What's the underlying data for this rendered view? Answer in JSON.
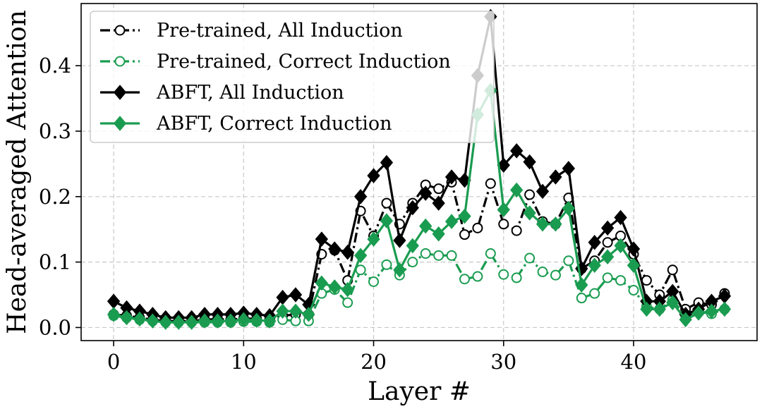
{
  "chart_data": {
    "type": "line",
    "title": "",
    "xlabel": "Layer #",
    "ylabel": "Head-averaged Attention",
    "xlim": [
      -2.5,
      49.5
    ],
    "ylim": [
      -0.02,
      0.495
    ],
    "xticks": [
      0,
      10,
      20,
      30,
      40
    ],
    "yticks": [
      0.0,
      0.1,
      0.2,
      0.3,
      0.4
    ],
    "xtick_labels": [
      "0",
      "10",
      "20",
      "30",
      "40"
    ],
    "ytick_labels": [
      "0.0",
      "0.1",
      "0.2",
      "0.3",
      "0.4"
    ],
    "grid": true,
    "legend_position": "upper-left",
    "x": [
      0,
      1,
      2,
      3,
      4,
      5,
      6,
      7,
      8,
      9,
      10,
      11,
      12,
      13,
      14,
      15,
      16,
      17,
      18,
      19,
      20,
      21,
      22,
      23,
      24,
      25,
      26,
      27,
      28,
      29,
      30,
      31,
      32,
      33,
      34,
      35,
      36,
      37,
      38,
      39,
      40,
      41,
      42,
      43,
      44,
      45,
      46,
      47
    ],
    "series": [
      {
        "name": "Pre-trained, All Induction",
        "color": "#000000",
        "linestyle": "dashdot",
        "marker": "open-circle",
        "values": [
          0.02,
          0.018,
          0.015,
          0.012,
          0.01,
          0.01,
          0.01,
          0.012,
          0.013,
          0.012,
          0.014,
          0.013,
          0.012,
          0.018,
          0.02,
          0.02,
          0.112,
          0.118,
          0.072,
          0.178,
          0.14,
          0.19,
          0.158,
          0.19,
          0.218,
          0.212,
          0.222,
          0.142,
          0.152,
          0.22,
          0.158,
          0.148,
          0.203,
          0.162,
          0.158,
          0.198,
          0.09,
          0.102,
          0.13,
          0.14,
          0.112,
          0.072,
          0.05,
          0.088,
          0.028,
          0.038,
          0.035,
          0.052
        ]
      },
      {
        "name": "Pre-trained, Correct Induction",
        "color": "#1a9c50",
        "linestyle": "dashdot",
        "marker": "open-circle",
        "values": [
          0.018,
          0.015,
          0.012,
          0.01,
          0.008,
          0.008,
          0.008,
          0.008,
          0.008,
          0.008,
          0.009,
          0.009,
          0.008,
          0.012,
          0.01,
          0.01,
          0.052,
          0.058,
          0.038,
          0.088,
          0.07,
          0.096,
          0.08,
          0.1,
          0.113,
          0.11,
          0.11,
          0.074,
          0.078,
          0.113,
          0.081,
          0.076,
          0.106,
          0.085,
          0.08,
          0.102,
          0.045,
          0.052,
          0.076,
          0.072,
          0.057,
          0.032,
          0.028,
          0.042,
          0.018,
          0.024,
          0.021,
          0.028
        ]
      },
      {
        "name": "ABFT, All Induction",
        "color": "#000000",
        "linestyle": "solid",
        "marker": "filled-diamond",
        "values": [
          0.04,
          0.03,
          0.025,
          0.02,
          0.015,
          0.015,
          0.015,
          0.02,
          0.02,
          0.02,
          0.022,
          0.02,
          0.018,
          0.046,
          0.05,
          0.035,
          0.135,
          0.12,
          0.115,
          0.2,
          0.232,
          0.252,
          0.133,
          0.183,
          0.205,
          0.19,
          0.23,
          0.225,
          0.385,
          0.475,
          0.248,
          0.27,
          0.253,
          0.208,
          0.23,
          0.243,
          0.09,
          0.13,
          0.152,
          0.168,
          0.12,
          0.04,
          0.04,
          0.055,
          0.02,
          0.028,
          0.04,
          0.048
        ]
      },
      {
        "name": "ABFT, Correct Induction",
        "color": "#1a9c50",
        "linestyle": "solid",
        "marker": "filled-diamond",
        "values": [
          0.02,
          0.015,
          0.013,
          0.01,
          0.008,
          0.008,
          0.008,
          0.01,
          0.01,
          0.01,
          0.012,
          0.011,
          0.01,
          0.025,
          0.025,
          0.02,
          0.068,
          0.062,
          0.058,
          0.11,
          0.135,
          0.163,
          0.088,
          0.125,
          0.155,
          0.143,
          0.162,
          0.17,
          0.325,
          0.362,
          0.18,
          0.21,
          0.175,
          0.158,
          0.158,
          0.182,
          0.065,
          0.095,
          0.108,
          0.125,
          0.095,
          0.028,
          0.028,
          0.038,
          0.012,
          0.022,
          0.025,
          0.028
        ]
      }
    ]
  }
}
